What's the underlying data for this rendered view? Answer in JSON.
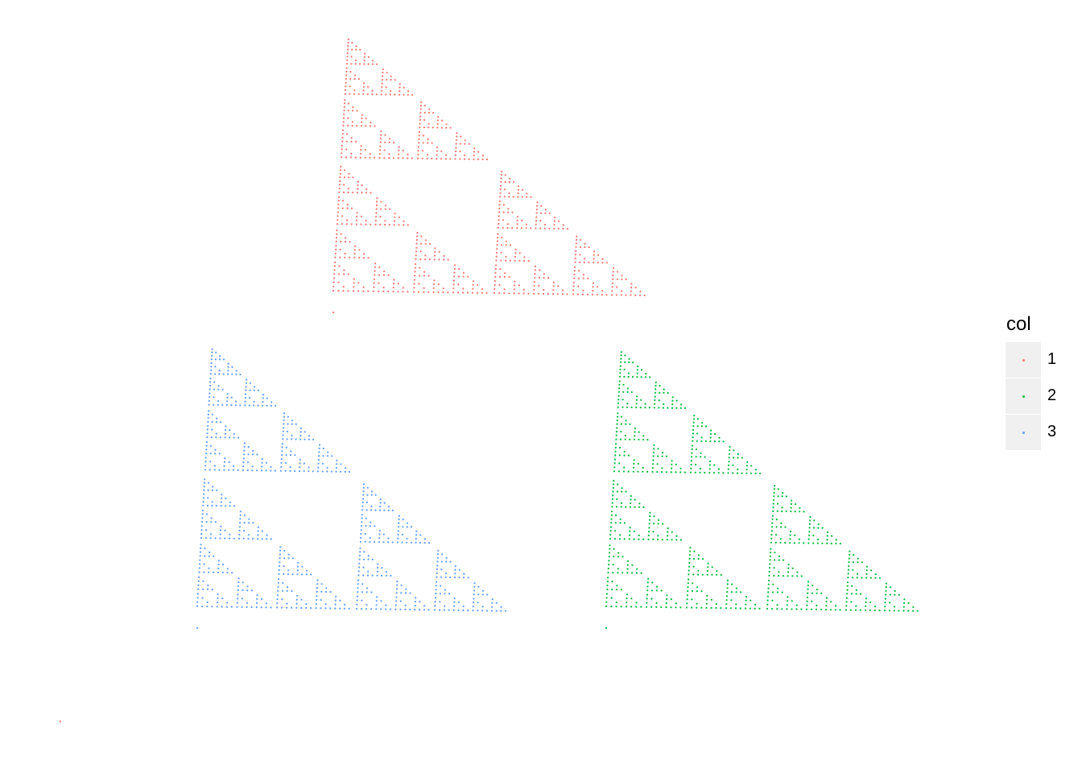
{
  "chart_data": {
    "type": "scatter",
    "title": "",
    "xlabel": "",
    "ylabel": "",
    "grid": false,
    "axes_visible": false,
    "legend": {
      "title": "col",
      "placement": "right",
      "entries": [
        {
          "label": "1",
          "color": "#F8766D"
        },
        {
          "label": "2",
          "color": "#00BA38"
        },
        {
          "label": "3",
          "color": "#619CFF"
        }
      ]
    },
    "series": [
      {
        "name": "1",
        "color": "#F8766D",
        "region": "top",
        "description_level": 6
      },
      {
        "name": "2",
        "color": "#00BA38",
        "region": "right",
        "description_level": 6
      },
      {
        "name": "3",
        "color": "#619CFF",
        "region": "left",
        "description_level": 6
      }
    ],
    "stray_point": {
      "series": "1"
    }
  }
}
